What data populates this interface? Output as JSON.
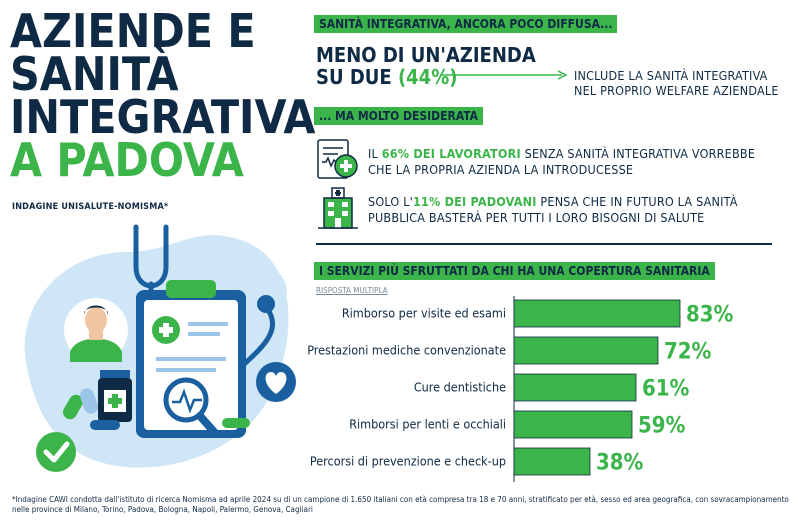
{
  "title": {
    "line1": "AZIENDE E",
    "line2": "SANITÀ",
    "line3": "INTEGRATIVA",
    "line4": "A PADOVA"
  },
  "subtitle": "INDAGINE UNISALUTE-NOMISMA*",
  "section1": {
    "tag": "SANITÀ INTEGRATIVA, ANCORA POCO DIFFUSA...",
    "headline_line1": "MENO DI UN'AZIENDA",
    "headline_line2_prefix": "SU DUE ",
    "headline_pct": "(44%)",
    "side_line1": "INCLUDE LA SANITÀ INTEGRATIVA",
    "side_line2": "NEL PROPRIO WELFARE AZIENDALE"
  },
  "section2": {
    "tag": "... MA MOLTO DESIDERATA",
    "stat1": {
      "prefix": "IL ",
      "highlight": "66% DEI LAVORATORI",
      "suffix": " SENZA SANITÀ INTEGRATIVA VORREBBE",
      "line2": "CHE LA PROPRIA AZIENDA LA INTRODUCESSE",
      "icon": "medical-record-icon"
    },
    "stat2": {
      "prefix": "SOLO L'",
      "highlight": "11% DEI PADOVANI",
      "suffix": " PENSA CHE IN FUTURO LA SANITÀ",
      "line2": "PUBBLICA BASTERÀ PER TUTTI I LORO BISOGNI DI SALUTE",
      "icon": "hospital-icon"
    }
  },
  "section3": {
    "tag": "I SERVIZI PIÙ SFRUTTATI DA CHI HA UNA COPERTURA SANITARIA",
    "note": "RISPOSTA MULTIPLA"
  },
  "chart_data": {
    "type": "bar",
    "orientation": "horizontal",
    "categories": [
      "Rimborso per visite ed esami",
      "Prestazioni mediche convenzionate",
      "Cure dentistiche",
      "Rimborsi per lenti e occhiali",
      "Percorsi di prevenzione e check-up"
    ],
    "values": [
      83,
      72,
      61,
      59,
      38
    ],
    "value_labels": [
      "83%",
      "72%",
      "61%",
      "59%",
      "38%"
    ],
    "xlim": [
      0,
      100
    ],
    "bar_color": "#3bb54a",
    "grid": false
  },
  "footnote": "*Indagine CAWI condotta dall'istituto di ricerca Nomisma ad aprile 2024 su di un campione di 1.650 italiani con età compresa tra 18 e 70 anni, stratificato per età, sesso ed area geografica, con sovracampionamento nelle province di Milano, Torino, Padova, Bologna, Napoli, Palermo, Genova, Cagliari",
  "colors": {
    "navy": "#0f2a44",
    "green": "#3bb54a",
    "light_blue": "#cfe6f7"
  }
}
